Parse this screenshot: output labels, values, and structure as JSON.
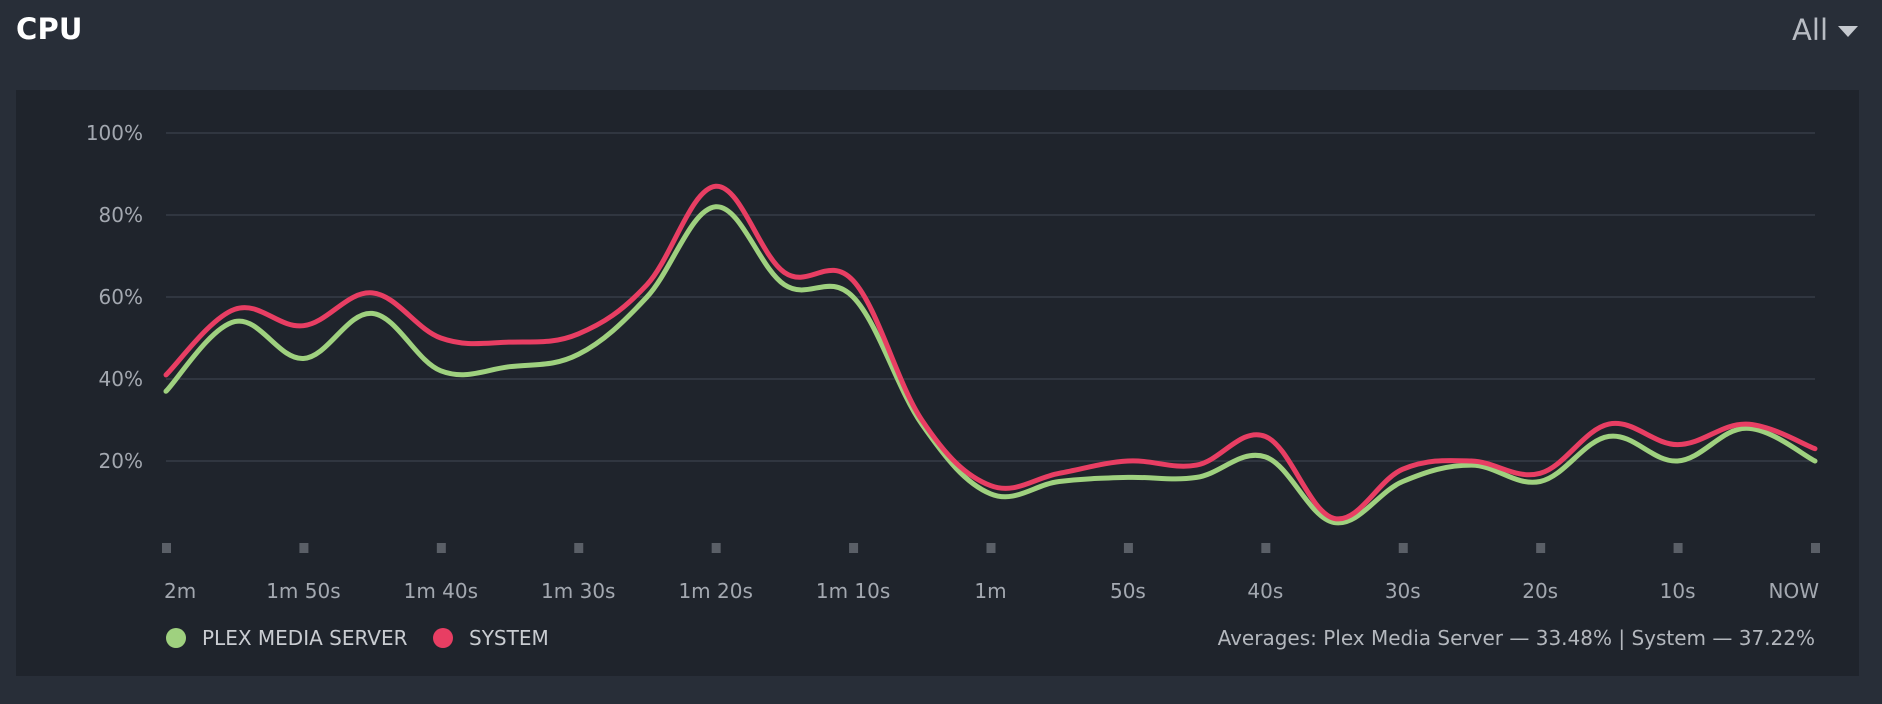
{
  "header": {
    "title": "CPU",
    "range_label": "All"
  },
  "legend": {
    "plex_label": "PLEX MEDIA SERVER",
    "system_label": "SYSTEM"
  },
  "averages": {
    "prefix": "Averages: ",
    "plex_text": "Plex Media Server — 33.48%",
    "separator": " | ",
    "system_text": "System — 37.22%"
  },
  "colors": {
    "plex": "#9fd17f",
    "system": "#e83e63",
    "grid": "#3b414b",
    "tick_label": "#a3a8b0"
  },
  "chart_data": {
    "type": "line",
    "title": "CPU",
    "xlabel": "",
    "ylabel": "",
    "ylim": [
      0,
      100
    ],
    "yticks": [
      20,
      40,
      60,
      80,
      100
    ],
    "ytick_labels": [
      "20%",
      "40%",
      "60%",
      "80%",
      "100%"
    ],
    "grid": true,
    "legend_position": "bottom-left",
    "x_tick_labels": [
      "2m",
      "1m 50s",
      "1m 40s",
      "1m 30s",
      "1m 20s",
      "1m 10s",
      "1m",
      "50s",
      "40s",
      "30s",
      "20s",
      "10s",
      "NOW"
    ],
    "x_seconds_ago": [
      120,
      115,
      110,
      105,
      100,
      95,
      90,
      85,
      80,
      75,
      70,
      65,
      60,
      55,
      50,
      45,
      40,
      35,
      30,
      25,
      20,
      15,
      10,
      5,
      0
    ],
    "series": [
      {
        "name": "PLEX MEDIA SERVER",
        "values": [
          37,
          54,
          45,
          56,
          42,
          43,
          46,
          60,
          82,
          63,
          60,
          29,
          12,
          15,
          16,
          16,
          21,
          5,
          15,
          19,
          15,
          26,
          20,
          28,
          20
        ]
      },
      {
        "name": "SYSTEM",
        "values": [
          41,
          57,
          53,
          61,
          50,
          49,
          51,
          63,
          87,
          66,
          64,
          30,
          14,
          17,
          20,
          19,
          26,
          6,
          18,
          20,
          17,
          29,
          24,
          29,
          23
        ]
      }
    ]
  }
}
